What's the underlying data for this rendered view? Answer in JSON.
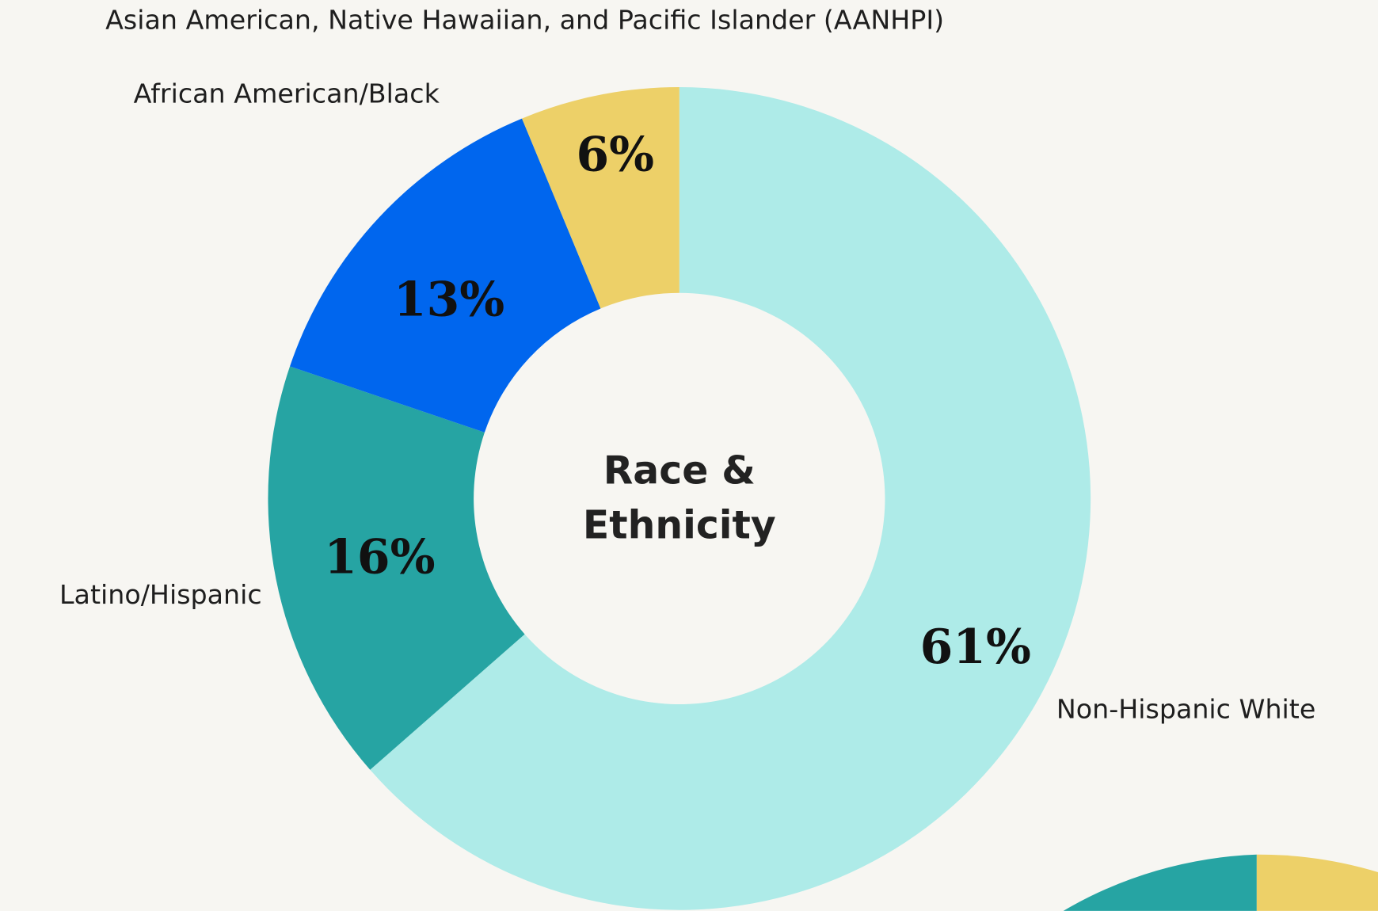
{
  "chart_data": {
    "type": "donut",
    "title": "Race & Ethnicity",
    "categories": [
      "Non-Hispanic White",
      "Latino/Hispanic",
      "African American/Black",
      "Asian American, Native Hawaiian, and Pacific Islander (AANHPI)"
    ],
    "values": [
      61,
      16,
      13,
      6
    ],
    "value_labels": [
      "61%",
      "16%",
      "13%",
      "6%"
    ],
    "colors": [
      "#aeebe8",
      "#26a4a3",
      "#0066ee",
      "#edd068"
    ]
  }
}
